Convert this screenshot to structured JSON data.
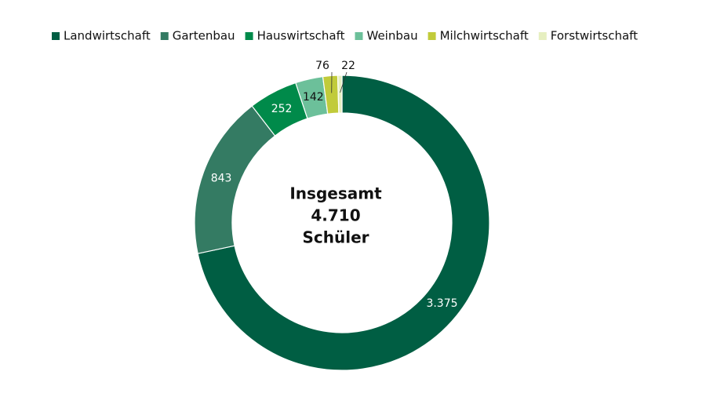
{
  "chart_data": {
    "type": "donut",
    "categories": [
      "Landwirtschaft",
      "Gartenbau",
      "Hauswirtschaft",
      "Weinbau",
      "Milchwirtschaft",
      "Forstwirtschaft"
    ],
    "values": [
      3375,
      843,
      252,
      142,
      76,
      22
    ],
    "value_labels": [
      "3.375",
      "843",
      "252",
      "142",
      "76",
      "22"
    ],
    "colors": [
      "#005e43",
      "#347b63",
      "#008a4a",
      "#6cc09a",
      "#c1cb3a",
      "#e6efc0"
    ],
    "center_text": [
      "Insgesamt",
      "4.710",
      "Schüler"
    ],
    "legend": "top"
  }
}
